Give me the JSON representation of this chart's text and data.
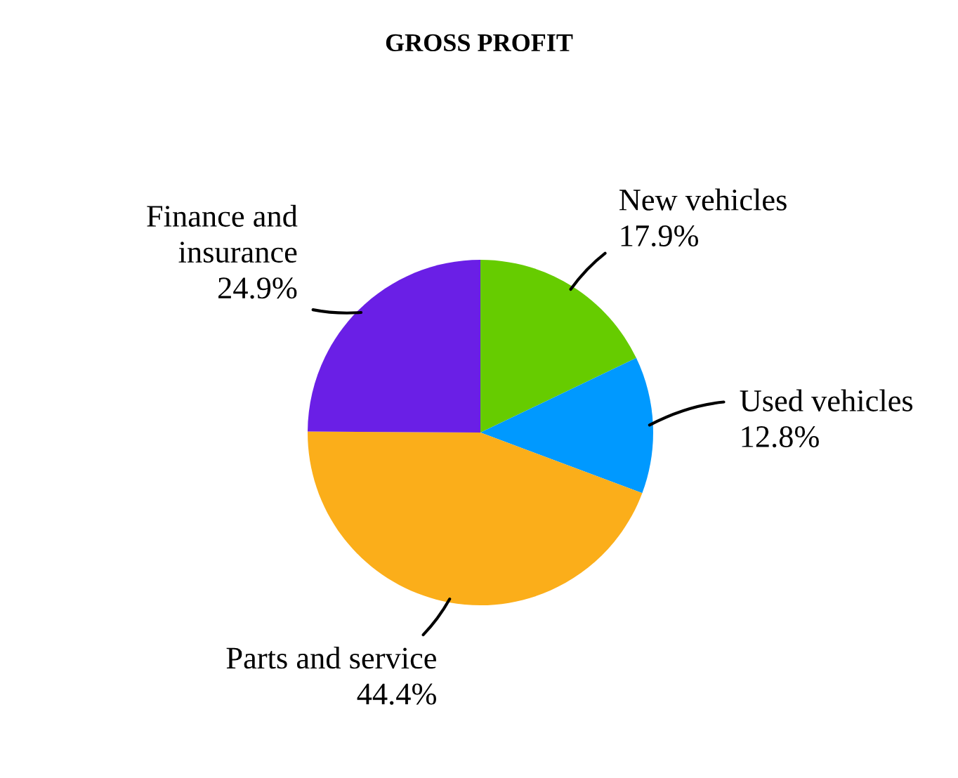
{
  "chart_data": {
    "type": "pie",
    "title": "GROSS PROFIT",
    "categories": [
      "New vehicles",
      "Used vehicles",
      "Parts and service",
      "Finance and\ninsurance"
    ],
    "values": [
      17.9,
      12.8,
      44.4,
      24.9
    ],
    "value_labels": [
      "17.9%",
      "12.8%",
      "44.4%",
      "24.9%"
    ],
    "colors": [
      "#66cc00",
      "#0099ff",
      "#fbae1a",
      "#6a1fe6"
    ]
  }
}
